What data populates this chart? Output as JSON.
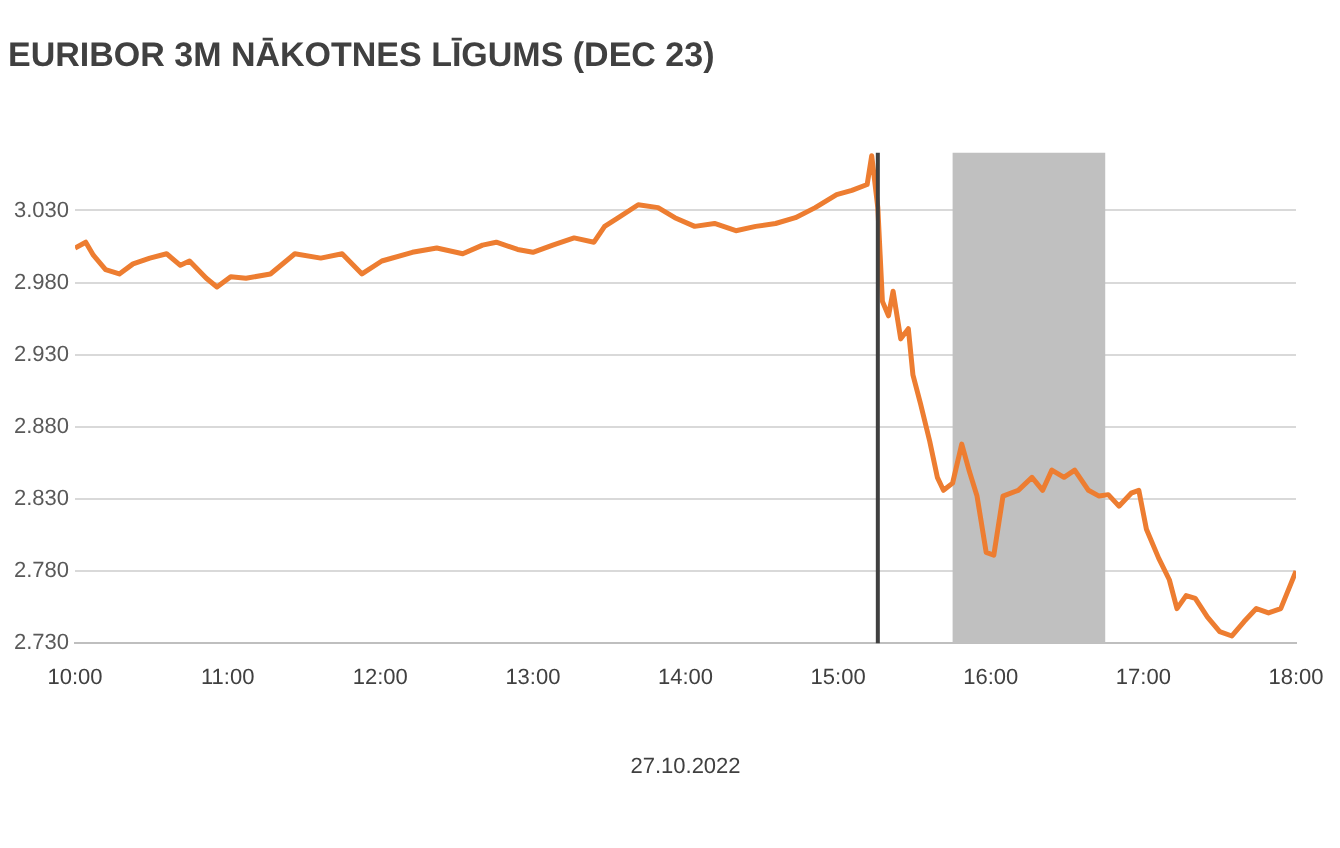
{
  "chart_data": {
    "type": "line",
    "title": "EURIBOR 3M NĀKOTNES LĪGUMS (DEC 23)",
    "xlabel": "27.10.2022",
    "x": [
      10.0,
      10.07,
      10.12,
      10.2,
      10.29,
      10.38,
      10.49,
      10.6,
      10.69,
      10.75,
      10.86,
      10.93,
      11.02,
      11.12,
      11.28,
      11.44,
      11.61,
      11.75,
      11.88,
      12.01,
      12.21,
      12.37,
      12.54,
      12.67,
      12.76,
      12.9,
      13.0,
      13.13,
      13.27,
      13.4,
      13.47,
      13.56,
      13.69,
      13.82,
      13.93,
      14.06,
      14.19,
      14.33,
      14.46,
      14.59,
      14.72,
      14.85,
      14.99,
      15.09,
      15.19,
      15.22,
      15.26,
      15.29,
      15.33,
      15.36,
      15.41,
      15.46,
      15.49,
      15.54,
      15.6,
      15.65,
      15.69,
      15.75,
      15.81,
      15.86,
      15.91,
      15.97,
      16.02,
      16.08,
      16.18,
      16.27,
      16.34,
      16.4,
      16.48,
      16.55,
      16.64,
      16.71,
      16.77,
      16.84,
      16.92,
      16.97,
      17.02,
      17.1,
      17.17,
      17.22,
      17.28,
      17.34,
      17.42,
      17.5,
      17.58,
      17.66,
      17.74,
      17.82,
      17.9,
      18.0
    ],
    "series": [
      {
        "color": "#ed7d31",
        "values": [
          3.004,
          3.008,
          2.999,
          2.989,
          2.986,
          2.993,
          2.997,
          3.0,
          2.992,
          2.995,
          2.983,
          2.977,
          2.984,
          2.983,
          2.986,
          3.0,
          2.997,
          3.0,
          2.986,
          2.995,
          3.001,
          3.004,
          3.0,
          3.006,
          3.008,
          3.003,
          3.001,
          3.006,
          3.011,
          3.008,
          3.019,
          3.025,
          3.034,
          3.032,
          3.025,
          3.019,
          3.021,
          3.016,
          3.019,
          3.021,
          3.025,
          3.032,
          3.041,
          3.044,
          3.048,
          3.068,
          3.032,
          2.967,
          2.957,
          2.974,
          2.941,
          2.948,
          2.916,
          2.896,
          2.87,
          2.845,
          2.836,
          2.841,
          2.868,
          2.849,
          2.832,
          2.793,
          2.791,
          2.832,
          2.836,
          2.845,
          2.836,
          2.85,
          2.845,
          2.85,
          2.836,
          2.832,
          2.833,
          2.825,
          2.834,
          2.836,
          2.809,
          2.789,
          2.774,
          2.754,
          2.763,
          2.761,
          2.748,
          2.738,
          2.735,
          2.745,
          2.754,
          2.751,
          2.754,
          2.78
        ]
      }
    ],
    "xlim": [
      10,
      18
    ],
    "xticks": [
      {
        "value": 10,
        "label": "10:00"
      },
      {
        "value": 11,
        "label": "11:00"
      },
      {
        "value": 12,
        "label": "12:00"
      },
      {
        "value": 13,
        "label": "13:00"
      },
      {
        "value": 14,
        "label": "14:00"
      },
      {
        "value": 15,
        "label": "15:00"
      },
      {
        "value": 16,
        "label": "16:00"
      },
      {
        "value": 17,
        "label": "17:00"
      },
      {
        "value": 18,
        "label": "18:00"
      }
    ],
    "ylim": [
      2.73,
      3.07
    ],
    "yticks": [
      {
        "value": 2.73,
        "label": "2.730"
      },
      {
        "value": 2.78,
        "label": "2.780"
      },
      {
        "value": 2.83,
        "label": "2.830"
      },
      {
        "value": 2.88,
        "label": "2.880"
      },
      {
        "value": 2.93,
        "label": "2.930"
      },
      {
        "value": 2.98,
        "label": "2.980"
      },
      {
        "value": 3.03,
        "label": "3.030"
      }
    ],
    "grid": "y",
    "marker": "none",
    "line_style": "solid",
    "ref_lines": [
      {
        "axis": "x",
        "value": 15.26,
        "color": "#404040"
      }
    ],
    "bands": [
      {
        "axis": "x",
        "from": 15.75,
        "to": 16.75,
        "color": "#c0c0c0"
      }
    ]
  }
}
